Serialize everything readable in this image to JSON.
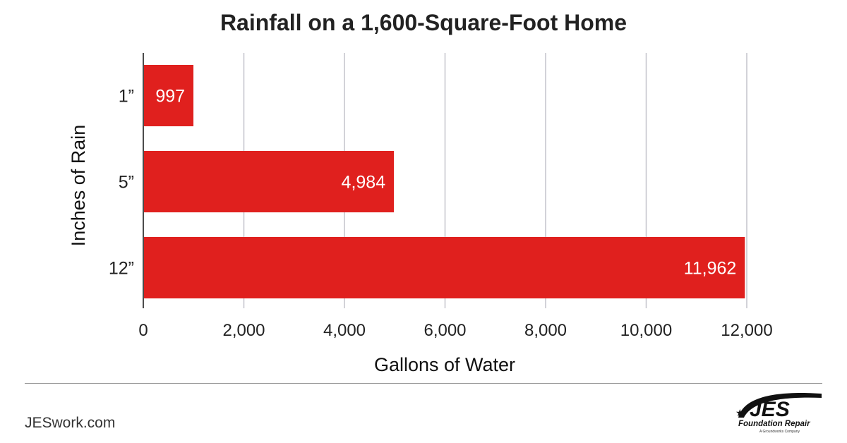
{
  "chart_data": {
    "type": "bar",
    "orientation": "horizontal",
    "title": "Rainfall on a 1,600-Square-Foot Home",
    "xlabel": "Gallons of Water",
    "ylabel": "Inches of Rain",
    "categories": [
      "1”",
      "5”",
      "12”"
    ],
    "values": [
      997,
      4984,
      11962
    ],
    "data_labels": [
      "997",
      "4,984",
      "11,962"
    ],
    "xlim": [
      0,
      12000
    ],
    "x_ticks": [
      0,
      2000,
      4000,
      6000,
      8000,
      10000,
      12000
    ],
    "x_tick_labels": [
      "0",
      "2,000",
      "4,000",
      "6,000",
      "8,000",
      "10,000",
      "12,000"
    ],
    "grid": "vertical",
    "legend": "none",
    "bar_color": "#e0201e",
    "label_color": "#ffffff"
  },
  "footer": {
    "website": "JESwork.com"
  },
  "brand": {
    "logo_text": "JES",
    "logo_subtitle": "Foundation Repair",
    "logo_tagline": "A Groundworks Company"
  }
}
